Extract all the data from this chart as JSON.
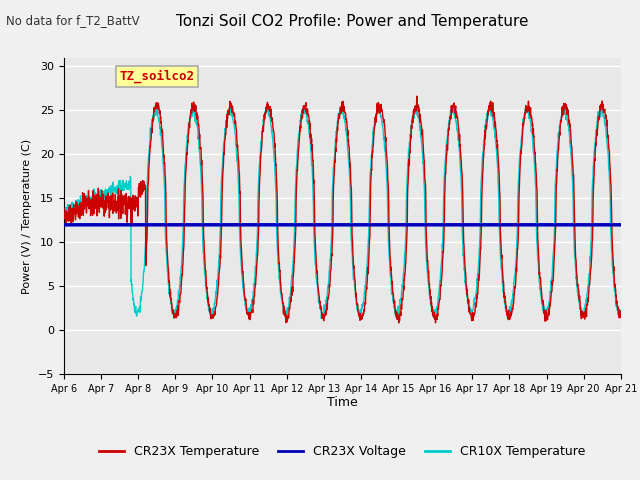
{
  "title": "Tonzi Soil CO2 Profile: Power and Temperature",
  "subtitle": "No data for f_T2_BattV",
  "ylabel": "Power (V) / Temperature (C)",
  "xlabel": "Time",
  "ylim": [
    -5,
    31
  ],
  "yticks": [
    -5,
    0,
    5,
    10,
    15,
    20,
    25,
    30
  ],
  "x_tick_labels": [
    "Apr 6",
    "Apr 7",
    "Apr 8",
    "Apr 9",
    "Apr 10",
    "Apr 11",
    "Apr 12",
    "Apr 13",
    "Apr 14",
    "Apr 15",
    "Apr 16",
    "Apr 17",
    "Apr 18",
    "Apr 19",
    "Apr 20",
    "Apr 21"
  ],
  "voltage_value": 12.0,
  "legend_entries": [
    "CR23X Temperature",
    "CR23X Voltage",
    "CR10X Temperature"
  ],
  "bg_color": "#e8e8e8",
  "grid_color": "#ffffff",
  "annotation_box_label": "TZ_soilco2",
  "annotation_box_color": "#ffff99"
}
